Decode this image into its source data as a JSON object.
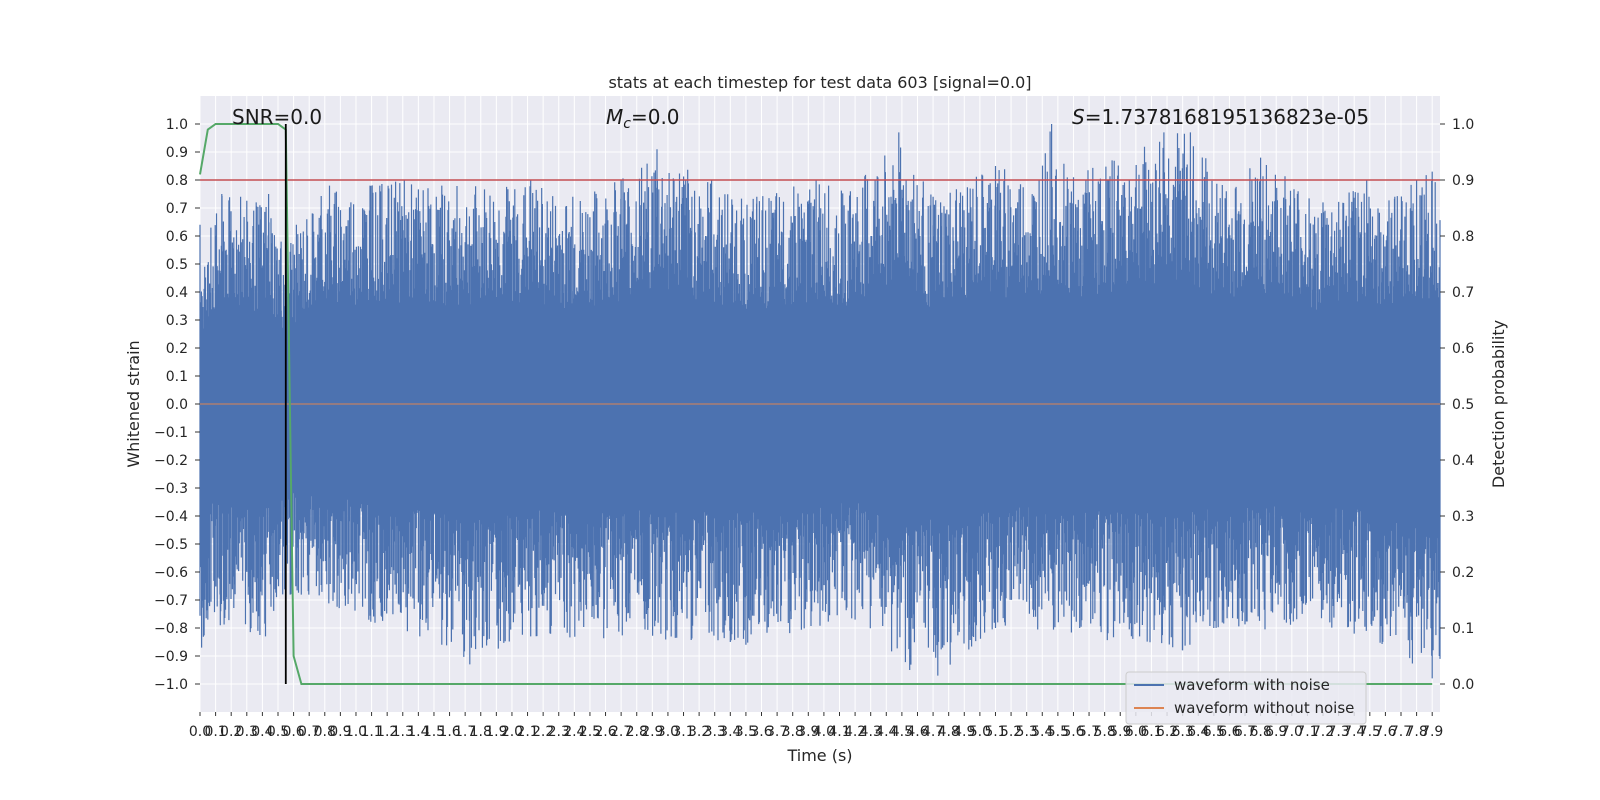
{
  "chart_data": {
    "type": "line",
    "title": "stats at each timestep for test data 603 [signal=0.0]",
    "xlabel": "Time (s)",
    "ylabel": "Whitened strain",
    "y2label": "Detection probability",
    "xlim": [
      0.0,
      7.95
    ],
    "ylim": [
      -1.1,
      1.1
    ],
    "y2lim": [
      -0.05,
      1.05
    ],
    "xticks": [
      0.0,
      0.1,
      0.2,
      0.3,
      0.4,
      0.5,
      0.6,
      0.7,
      0.8,
      0.9,
      1.0,
      1.1,
      1.2,
      1.3,
      1.4,
      1.5,
      1.6,
      1.7,
      1.8,
      1.9,
      2.0,
      2.1,
      2.2,
      2.3,
      2.4,
      2.5,
      2.6,
      2.7,
      2.8,
      2.9,
      3.0,
      3.1,
      3.2,
      3.3,
      3.4,
      3.5,
      3.6,
      3.7,
      3.8,
      3.9,
      4.0,
      4.1,
      4.2,
      4.3,
      4.4,
      4.5,
      4.6,
      4.7,
      4.8,
      4.9,
      5.0,
      5.1,
      5.2,
      5.3,
      5.4,
      5.5,
      5.6,
      5.7,
      5.8,
      5.9,
      6.0,
      6.1,
      6.2,
      6.3,
      6.4,
      6.5,
      6.6,
      6.7,
      6.8,
      6.9,
      7.0,
      7.1,
      7.2,
      7.3,
      7.4,
      7.5,
      7.6,
      7.7,
      7.8,
      7.9
    ],
    "yticks": [
      1.0,
      0.9,
      0.8,
      0.7,
      0.6,
      0.5,
      0.4,
      0.3,
      0.2,
      0.1,
      0.0,
      -0.1,
      -0.2,
      -0.3,
      -0.4,
      -0.5,
      -0.6,
      -0.7,
      -0.8,
      -0.9,
      -1.0
    ],
    "ytick_labels": [
      "1.0",
      "0.9",
      "0.8",
      "0.7",
      "0.6",
      "0.5",
      "0.4",
      "0.3",
      "0.2",
      "0.1",
      "0.0",
      "−0.1",
      "−0.2",
      "−0.3",
      "−0.4",
      "−0.5",
      "−0.6",
      "−0.7",
      "−0.8",
      "−0.9",
      "−1.0"
    ],
    "y2ticks": [
      1.0,
      0.9,
      0.8,
      0.7,
      0.6,
      0.5,
      0.4,
      0.3,
      0.2,
      0.1,
      0.0
    ],
    "grid": true,
    "legend_position": "bottom-right",
    "threshold": 0.9,
    "marker_time": 0.55,
    "annotations": {
      "snr": "SNR=0.0",
      "mc_symbol": "M",
      "mc_sub": "c",
      "mc_value": "=0.0",
      "s_symbol": "S",
      "s_value": "=1.7378168195136823e-05"
    },
    "noisy_waveform": {
      "name": "waveform with noise",
      "color": "#4c72b0",
      "peaks_upper": [
        [
          0.0,
          0.64
        ],
        [
          0.03,
          0.49
        ],
        [
          0.07,
          0.63
        ],
        [
          0.14,
          0.75
        ],
        [
          0.26,
          0.74
        ],
        [
          0.36,
          0.72
        ],
        [
          0.44,
          0.75
        ],
        [
          0.52,
          0.58
        ],
        [
          0.83,
          0.78
        ],
        [
          1.09,
          0.78
        ],
        [
          1.31,
          0.8
        ],
        [
          1.55,
          0.78
        ],
        [
          2.12,
          0.8
        ],
        [
          2.39,
          0.74
        ],
        [
          2.7,
          0.8
        ],
        [
          2.93,
          0.91
        ],
        [
          3.28,
          0.8
        ],
        [
          3.57,
          0.74
        ],
        [
          3.95,
          0.8
        ],
        [
          4.03,
          0.78
        ],
        [
          4.17,
          0.76
        ],
        [
          4.48,
          0.97
        ],
        [
          4.7,
          0.74
        ],
        [
          5.1,
          0.85
        ],
        [
          5.38,
          0.8
        ],
        [
          5.46,
          1.0
        ],
        [
          5.6,
          0.81
        ],
        [
          6.18,
          0.97
        ],
        [
          6.35,
          0.97
        ],
        [
          6.58,
          0.76
        ],
        [
          6.8,
          0.88
        ],
        [
          7.2,
          0.72
        ],
        [
          7.48,
          0.8
        ],
        [
          7.66,
          0.74
        ],
        [
          7.8,
          0.8
        ],
        [
          7.9,
          0.83
        ]
      ],
      "peaks_lower": [
        [
          0.01,
          -0.87
        ],
        [
          0.05,
          -0.77
        ],
        [
          0.13,
          -0.79
        ],
        [
          0.42,
          -0.83
        ],
        [
          0.53,
          -0.68
        ],
        [
          1.55,
          -0.86
        ],
        [
          1.73,
          -0.93
        ],
        [
          2.12,
          -0.83
        ],
        [
          3.4,
          -0.85
        ],
        [
          3.5,
          -0.86
        ],
        [
          4.2,
          -0.77
        ],
        [
          4.55,
          -0.95
        ],
        [
          4.67,
          -0.87
        ],
        [
          4.73,
          -0.97
        ],
        [
          5.1,
          -0.8
        ],
        [
          6.3,
          -0.88
        ],
        [
          6.5,
          -0.8
        ],
        [
          7.4,
          -0.82
        ],
        [
          7.9,
          -0.98
        ]
      ]
    },
    "clean_waveform": {
      "name": "waveform without noise",
      "color": "#dd8452"
    },
    "detection_probability": {
      "color": "#55a868",
      "x": [
        0.0,
        0.05,
        0.1,
        0.15,
        0.2,
        0.25,
        0.3,
        0.35,
        0.4,
        0.45,
        0.5,
        0.55,
        0.6,
        0.65,
        0.7,
        7.9
      ],
      "y": [
        0.91,
        0.99,
        1.0,
        1.0,
        1.0,
        1.0,
        1.0,
        1.0,
        1.0,
        1.0,
        1.0,
        0.99,
        0.05,
        0.0,
        0.0,
        0.0
      ]
    },
    "threshold_color": "#c44e52",
    "marker_color": "#000000"
  }
}
